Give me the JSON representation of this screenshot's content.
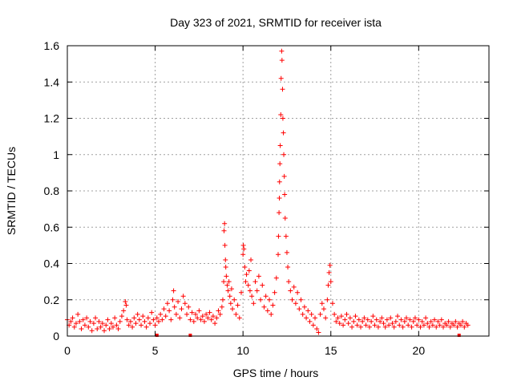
{
  "chart_data": {
    "type": "scatter",
    "title": "Day 323 of 2021, SRMTID for receiver ista",
    "xlabel": "GPS time / hours",
    "ylabel": "SRMTID / TECUs",
    "xlim": [
      0,
      24
    ],
    "ylim": [
      0,
      1.6
    ],
    "xticks": [
      0,
      5,
      10,
      15,
      20
    ],
    "xtick_labels": [
      "0",
      "5",
      "10",
      "15",
      "20"
    ],
    "yticks": [
      0,
      0.2,
      0.4,
      0.6,
      0.8,
      1.0,
      1.2,
      1.4,
      1.6
    ],
    "ytick_labels": [
      "0",
      "0.2",
      "0.4",
      "0.6",
      "0.8",
      "1",
      "1.2",
      "1.4",
      "1.6"
    ],
    "grid": true,
    "marker": "+",
    "color": "#ff0000",
    "series": [
      {
        "name": "SRMTID",
        "points": [
          [
            0.0,
            0.09
          ],
          [
            0.1,
            0.06
          ],
          [
            0.2,
            0.08
          ],
          [
            0.3,
            0.1
          ],
          [
            0.4,
            0.05
          ],
          [
            0.5,
            0.07
          ],
          [
            0.6,
            0.12
          ],
          [
            0.7,
            0.08
          ],
          [
            0.8,
            0.04
          ],
          [
            0.9,
            0.09
          ],
          [
            1.0,
            0.06
          ],
          [
            1.1,
            0.1
          ],
          [
            1.2,
            0.05
          ],
          [
            1.3,
            0.08
          ],
          [
            1.4,
            0.03
          ],
          [
            1.5,
            0.07
          ],
          [
            1.6,
            0.1
          ],
          [
            1.7,
            0.04
          ],
          [
            1.8,
            0.08
          ],
          [
            1.9,
            0.05
          ],
          [
            2.0,
            0.07
          ],
          [
            2.1,
            0.03
          ],
          [
            2.2,
            0.06
          ],
          [
            2.3,
            0.09
          ],
          [
            2.4,
            0.04
          ],
          [
            2.5,
            0.07
          ],
          [
            2.6,
            0.05
          ],
          [
            2.7,
            0.1
          ],
          [
            2.8,
            0.06
          ],
          [
            2.9,
            0.04
          ],
          [
            3.0,
            0.08
          ],
          [
            3.1,
            0.11
          ],
          [
            3.2,
            0.14
          ],
          [
            3.3,
            0.19
          ],
          [
            3.35,
            0.17
          ],
          [
            3.4,
            0.09
          ],
          [
            3.5,
            0.06
          ],
          [
            3.6,
            0.08
          ],
          [
            3.7,
            0.05
          ],
          [
            3.8,
            0.1
          ],
          [
            3.9,
            0.07
          ],
          [
            4.0,
            0.12
          ],
          [
            4.1,
            0.09
          ],
          [
            4.2,
            0.06
          ],
          [
            4.3,
            0.11
          ],
          [
            4.4,
            0.08
          ],
          [
            4.5,
            0.05
          ],
          [
            4.6,
            0.1
          ],
          [
            4.7,
            0.07
          ],
          [
            4.8,
            0.13
          ],
          [
            4.9,
            0.09
          ],
          [
            5.0,
            0.06
          ],
          [
            5.1,
            0.1
          ],
          [
            5.2,
            0.08
          ],
          [
            5.3,
            0.12
          ],
          [
            5.4,
            0.09
          ],
          [
            5.5,
            0.15
          ],
          [
            5.6,
            0.11
          ],
          [
            5.7,
            0.18
          ],
          [
            5.8,
            0.14
          ],
          [
            5.9,
            0.09
          ],
          [
            6.0,
            0.2
          ],
          [
            6.05,
            0.25
          ],
          [
            6.1,
            0.16
          ],
          [
            6.2,
            0.12
          ],
          [
            6.3,
            0.19
          ],
          [
            6.4,
            0.1
          ],
          [
            6.5,
            0.15
          ],
          [
            6.6,
            0.22
          ],
          [
            6.7,
            0.18
          ],
          [
            6.8,
            0.12
          ],
          [
            6.9,
            0.16
          ],
          [
            7.0,
            0.09
          ],
          [
            7.1,
            0.13
          ],
          [
            7.2,
            0.08
          ],
          [
            7.3,
            0.12
          ],
          [
            7.4,
            0.1
          ],
          [
            7.5,
            0.14
          ],
          [
            7.6,
            0.09
          ],
          [
            7.7,
            0.11
          ],
          [
            7.8,
            0.08
          ],
          [
            7.9,
            0.12
          ],
          [
            8.0,
            0.1
          ],
          [
            8.1,
            0.13
          ],
          [
            8.2,
            0.09
          ],
          [
            8.3,
            0.11
          ],
          [
            8.4,
            0.07
          ],
          [
            8.5,
            0.1
          ],
          [
            8.6,
            0.14
          ],
          [
            8.7,
            0.12
          ],
          [
            8.8,
            0.16
          ],
          [
            8.85,
            0.2
          ],
          [
            8.9,
            0.3
          ],
          [
            8.92,
            0.58
          ],
          [
            8.95,
            0.62
          ],
          [
            8.97,
            0.5
          ],
          [
            9.0,
            0.42
          ],
          [
            9.02,
            0.38
          ],
          [
            9.05,
            0.33
          ],
          [
            9.1,
            0.28
          ],
          [
            9.15,
            0.25
          ],
          [
            9.2,
            0.3
          ],
          [
            9.25,
            0.22
          ],
          [
            9.3,
            0.18
          ],
          [
            9.35,
            0.26
          ],
          [
            9.4,
            0.15
          ],
          [
            9.5,
            0.2
          ],
          [
            9.6,
            0.12
          ],
          [
            9.7,
            0.17
          ],
          [
            9.8,
            0.1
          ],
          [
            9.9,
            0.24
          ],
          [
            10.0,
            0.45
          ],
          [
            10.02,
            0.5
          ],
          [
            10.05,
            0.48
          ],
          [
            10.1,
            0.38
          ],
          [
            10.15,
            0.3
          ],
          [
            10.2,
            0.34
          ],
          [
            10.3,
            0.28
          ],
          [
            10.35,
            0.36
          ],
          [
            10.4,
            0.25
          ],
          [
            10.45,
            0.42
          ],
          [
            10.5,
            0.22
          ],
          [
            10.6,
            0.18
          ],
          [
            10.7,
            0.3
          ],
          [
            10.8,
            0.25
          ],
          [
            10.9,
            0.33
          ],
          [
            11.0,
            0.2
          ],
          [
            11.1,
            0.28
          ],
          [
            11.2,
            0.16
          ],
          [
            11.3,
            0.22
          ],
          [
            11.4,
            0.14
          ],
          [
            11.5,
            0.2
          ],
          [
            11.6,
            0.12
          ],
          [
            11.7,
            0.17
          ],
          [
            11.8,
            0.24
          ],
          [
            11.9,
            0.32
          ],
          [
            12.0,
            0.45
          ],
          [
            12.02,
            0.55
          ],
          [
            12.05,
            0.68
          ],
          [
            12.07,
            0.76
          ],
          [
            12.08,
            0.85
          ],
          [
            12.1,
            0.95
          ],
          [
            12.12,
            1.05
          ],
          [
            12.15,
            1.22
          ],
          [
            12.17,
            1.42
          ],
          [
            12.2,
            1.57
          ],
          [
            12.22,
            1.52
          ],
          [
            12.25,
            1.36
          ],
          [
            12.27,
            1.2
          ],
          [
            12.3,
            1.12
          ],
          [
            12.32,
            1.0
          ],
          [
            12.35,
            0.88
          ],
          [
            12.37,
            0.78
          ],
          [
            12.4,
            0.65
          ],
          [
            12.45,
            0.55
          ],
          [
            12.5,
            0.46
          ],
          [
            12.55,
            0.38
          ],
          [
            12.6,
            0.3
          ],
          [
            12.7,
            0.25
          ],
          [
            12.8,
            0.2
          ],
          [
            12.9,
            0.27
          ],
          [
            13.0,
            0.18
          ],
          [
            13.1,
            0.24
          ],
          [
            13.2,
            0.15
          ],
          [
            13.3,
            0.2
          ],
          [
            13.4,
            0.12
          ],
          [
            13.5,
            0.16
          ],
          [
            13.6,
            0.1
          ],
          [
            13.7,
            0.14
          ],
          [
            13.8,
            0.08
          ],
          [
            13.9,
            0.12
          ],
          [
            14.0,
            0.06
          ],
          [
            14.1,
            0.1
          ],
          [
            14.2,
            0.04
          ],
          [
            14.3,
            0.02
          ],
          [
            14.4,
            0.12
          ],
          [
            14.5,
            0.18
          ],
          [
            14.6,
            0.15
          ],
          [
            14.7,
            0.1
          ],
          [
            14.8,
            0.2
          ],
          [
            14.85,
            0.28
          ],
          [
            14.9,
            0.35
          ],
          [
            14.95,
            0.39
          ],
          [
            15.0,
            0.3
          ],
          [
            15.1,
            0.18
          ],
          [
            15.2,
            0.12
          ],
          [
            15.3,
            0.08
          ],
          [
            15.4,
            0.1
          ],
          [
            15.5,
            0.07
          ],
          [
            15.6,
            0.11
          ],
          [
            15.7,
            0.06
          ],
          [
            15.8,
            0.09
          ],
          [
            15.9,
            0.12
          ],
          [
            16.0,
            0.07
          ],
          [
            16.1,
            0.1
          ],
          [
            16.2,
            0.05
          ],
          [
            16.3,
            0.08
          ],
          [
            16.4,
            0.11
          ],
          [
            16.5,
            0.06
          ],
          [
            16.6,
            0.09
          ],
          [
            16.7,
            0.05
          ],
          [
            16.8,
            0.08
          ],
          [
            16.9,
            0.1
          ],
          [
            17.0,
            0.06
          ],
          [
            17.1,
            0.09
          ],
          [
            17.2,
            0.05
          ],
          [
            17.3,
            0.08
          ],
          [
            17.4,
            0.11
          ],
          [
            17.5,
            0.06
          ],
          [
            17.6,
            0.09
          ],
          [
            17.7,
            0.05
          ],
          [
            17.8,
            0.08
          ],
          [
            17.9,
            0.1
          ],
          [
            18.0,
            0.07
          ],
          [
            18.1,
            0.05
          ],
          [
            18.2,
            0.09
          ],
          [
            18.3,
            0.06
          ],
          [
            18.4,
            0.1
          ],
          [
            18.5,
            0.07
          ],
          [
            18.6,
            0.05
          ],
          [
            18.7,
            0.08
          ],
          [
            18.8,
            0.11
          ],
          [
            18.9,
            0.06
          ],
          [
            19.0,
            0.09
          ],
          [
            19.1,
            0.05
          ],
          [
            19.2,
            0.08
          ],
          [
            19.3,
            0.1
          ],
          [
            19.4,
            0.06
          ],
          [
            19.5,
            0.09
          ],
          [
            19.6,
            0.05
          ],
          [
            19.7,
            0.08
          ],
          [
            19.8,
            0.1
          ],
          [
            19.9,
            0.06
          ],
          [
            20.0,
            0.09
          ],
          [
            20.1,
            0.05
          ],
          [
            20.2,
            0.08
          ],
          [
            20.3,
            0.06
          ],
          [
            20.4,
            0.1
          ],
          [
            20.5,
            0.07
          ],
          [
            20.6,
            0.05
          ],
          [
            20.7,
            0.08
          ],
          [
            20.8,
            0.06
          ],
          [
            20.9,
            0.09
          ],
          [
            21.0,
            0.05
          ],
          [
            21.1,
            0.08
          ],
          [
            21.2,
            0.06
          ],
          [
            21.3,
            0.09
          ],
          [
            21.4,
            0.05
          ],
          [
            21.5,
            0.07
          ],
          [
            21.6,
            0.06
          ],
          [
            21.7,
            0.08
          ],
          [
            21.8,
            0.05
          ],
          [
            21.9,
            0.07
          ],
          [
            22.0,
            0.06
          ],
          [
            22.1,
            0.08
          ],
          [
            22.2,
            0.05
          ],
          [
            22.3,
            0.07
          ],
          [
            22.4,
            0.06
          ],
          [
            22.5,
            0.08
          ],
          [
            22.6,
            0.05
          ],
          [
            22.7,
            0.07
          ],
          [
            22.8,
            0.06
          ]
        ]
      }
    ],
    "near_zero_markers": [
      {
        "x": 5.1,
        "y": 0.0
      },
      {
        "x": 7.0,
        "y": 0.0
      },
      {
        "x": 22.3,
        "y": 0.0
      }
    ]
  }
}
